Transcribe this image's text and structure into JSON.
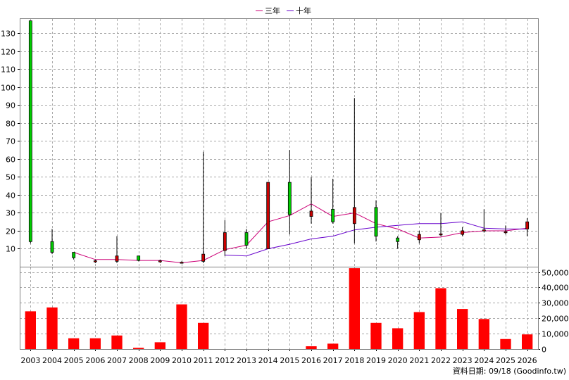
{
  "chart_data": {
    "type": "candlestick",
    "legend": {
      "placement": "top-center",
      "items": [
        {
          "name": "三年",
          "color": "#cc0077"
        },
        {
          "name": "十年",
          "color": "#6600cc"
        }
      ]
    },
    "x_categories": [
      "2003",
      "2004",
      "2005",
      "2006",
      "2007",
      "2008",
      "2009",
      "2010",
      "2011",
      "2012",
      "2013",
      "2014",
      "2015",
      "2016",
      "2017",
      "2018",
      "2019",
      "2020",
      "2021",
      "2022",
      "2023",
      "2024",
      "2025",
      "2026"
    ],
    "price_panel": {
      "ylim": [
        0,
        138
      ],
      "yticks": [
        10,
        20,
        30,
        40,
        50,
        60,
        70,
        80,
        90,
        100,
        110,
        120,
        130
      ],
      "grid": true,
      "candles": [
        {
          "open": 137,
          "close": 14,
          "high": 137,
          "low": 13
        },
        {
          "open": 14,
          "close": 8,
          "high": 21,
          "low": 7
        },
        {
          "open": 8,
          "close": 5,
          "high": 8,
          "low": 4
        },
        {
          "open": 3,
          "close": 3.3,
          "high": 4,
          "low": 2
        },
        {
          "open": 3,
          "close": 6,
          "high": 17,
          "low": 2
        },
        {
          "open": 6,
          "close": 3.5,
          "high": 6,
          "low": 3
        },
        {
          "open": 3,
          "close": 3.3,
          "high": 4,
          "low": 2
        },
        {
          "open": 2.3,
          "close": 2.5,
          "high": 3,
          "low": 2
        },
        {
          "open": 3,
          "close": 7,
          "high": 64,
          "low": 2
        },
        {
          "open": 9,
          "close": 19,
          "high": 26,
          "low": 6
        },
        {
          "open": 19,
          "close": 12,
          "high": 21,
          "low": 10
        },
        {
          "open": 10,
          "close": 47,
          "high": 47,
          "low": 10
        },
        {
          "open": 47,
          "close": 29,
          "high": 65,
          "low": 18
        },
        {
          "open": 28,
          "close": 31,
          "high": 50,
          "low": 24
        },
        {
          "open": 32,
          "close": 25,
          "high": 49,
          "low": 24
        },
        {
          "open": 24,
          "close": 33,
          "high": 94,
          "low": 13
        },
        {
          "open": 33,
          "close": 17,
          "high": 37,
          "low": 14
        },
        {
          "open": 16,
          "close": 14,
          "high": 17,
          "low": 10
        },
        {
          "open": 15,
          "close": 18,
          "high": 20,
          "low": 13
        },
        {
          "open": 18,
          "close": 18.3,
          "high": 30,
          "low": 17
        },
        {
          "open": 18,
          "close": 20,
          "high": 22,
          "low": 17
        },
        {
          "open": 20,
          "close": 20.5,
          "high": 32,
          "low": 19
        },
        {
          "open": 19,
          "close": 19.5,
          "high": 23,
          "low": 18
        },
        {
          "open": 21,
          "close": 25,
          "high": 27,
          "low": 17
        }
      ],
      "series": [
        {
          "name": "三年",
          "color": "#cc0077",
          "values": [
            null,
            null,
            8,
            4,
            4,
            3.5,
            3.5,
            2.2,
            3.5,
            9.5,
            12,
            25,
            28.5,
            35,
            28,
            30,
            24,
            21,
            16,
            16.5,
            19,
            20,
            20,
            21.5
          ]
        },
        {
          "name": "十年",
          "color": "#6600cc",
          "values": [
            null,
            null,
            null,
            null,
            null,
            null,
            null,
            null,
            null,
            6.5,
            6,
            10,
            12.5,
            15.5,
            17,
            20.5,
            22,
            23,
            24,
            24,
            25,
            21.5,
            21,
            21
          ]
        }
      ]
    },
    "volume_panel": {
      "ylim": [
        0,
        53000
      ],
      "yticks": [
        0,
        10000,
        20000,
        30000,
        40000,
        50000
      ],
      "ytick_labels": [
        "0",
        "10,000",
        "20,000",
        "30,000",
        "40,000",
        "50,000"
      ],
      "color": "#ff0000",
      "values": [
        24500,
        27000,
        7000,
        7000,
        8800,
        800,
        4400,
        29000,
        17000,
        0,
        0,
        0,
        0,
        1800,
        3500,
        52500,
        17000,
        13500,
        24000,
        39500,
        26000,
        19500,
        6500,
        9500
      ]
    },
    "footer": "資料日期: 09/18  (Goodinfo.tw)"
  }
}
